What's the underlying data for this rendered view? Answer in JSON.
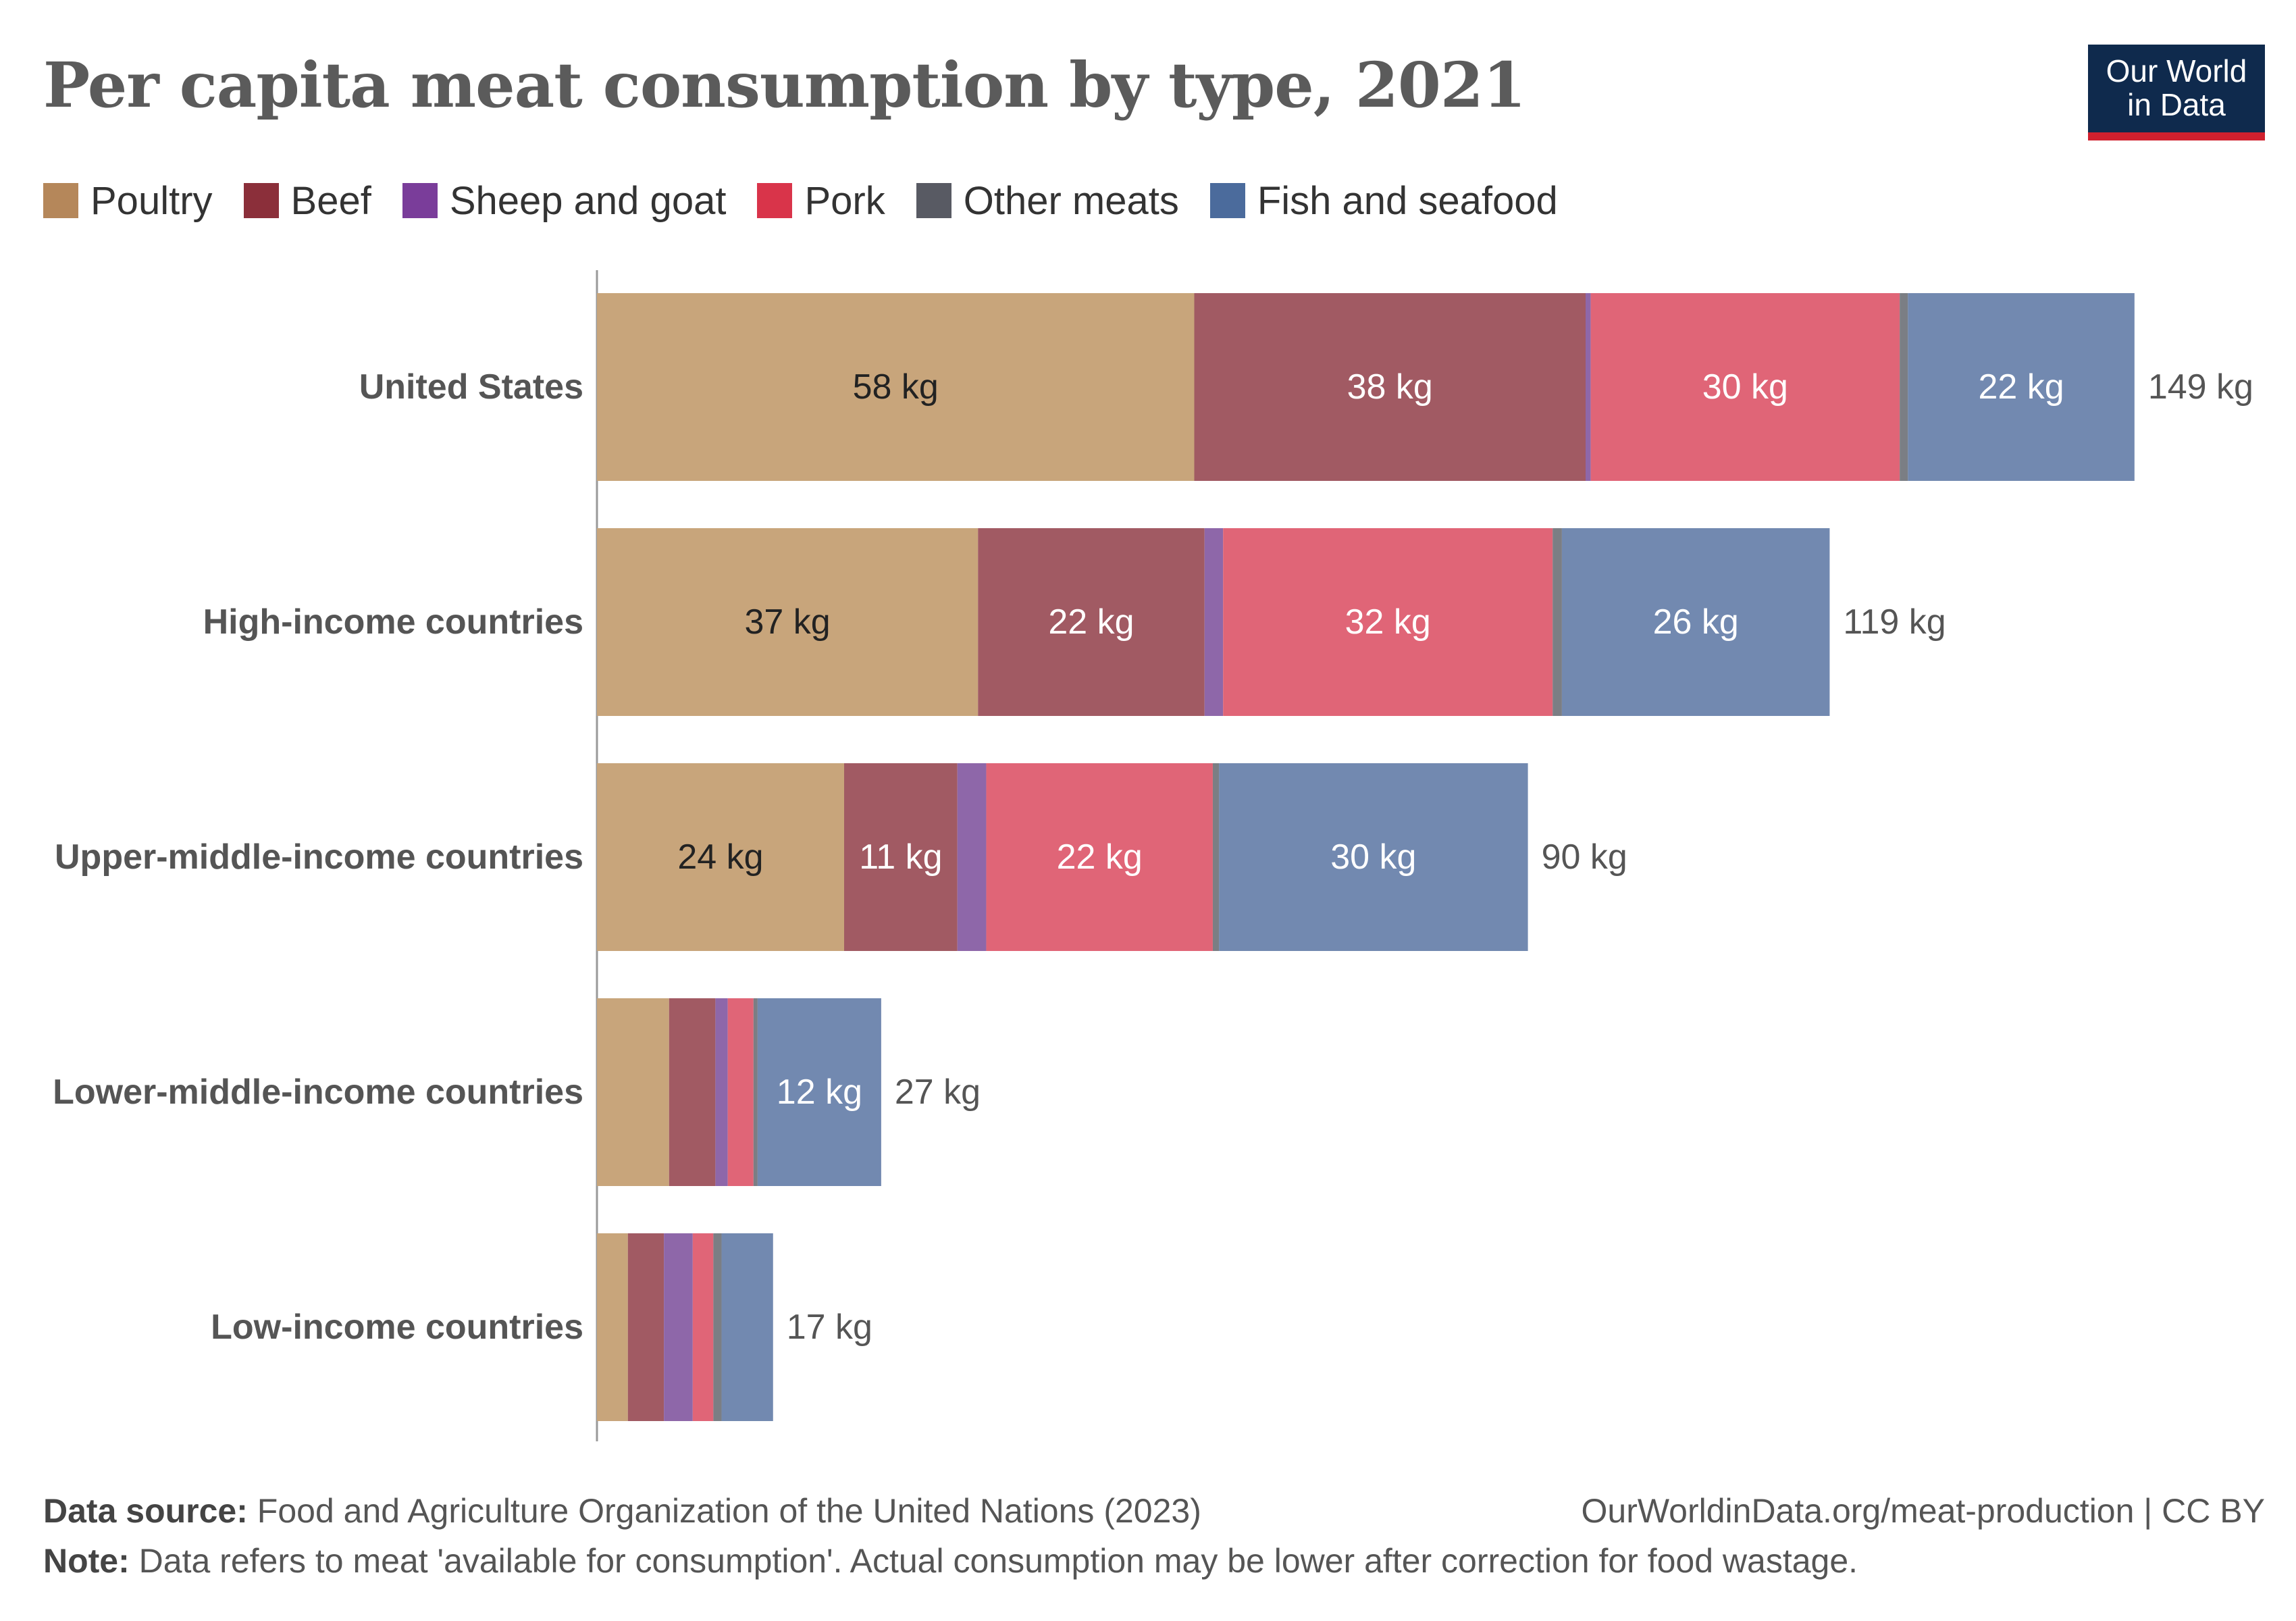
{
  "title": "Per capita meat consumption by type, 2021",
  "logo": {
    "line1": "Our World",
    "line2": "in Data",
    "bg": "#0f2a4d",
    "accent": "#d0202e"
  },
  "legend": [
    {
      "label": "Poultry",
      "color": "#b5875a"
    },
    {
      "label": "Beef",
      "color": "#8b2f3a"
    },
    {
      "label": "Sheep and goat",
      "color": "#7a3d9a"
    },
    {
      "label": "Pork",
      "color": "#d9344a"
    },
    {
      "label": "Other meats",
      "color": "#585a63"
    },
    {
      "label": "Fish and seafood",
      "color": "#4b6b9c"
    }
  ],
  "chart_data": {
    "type": "bar",
    "orientation": "horizontal",
    "stacked": true,
    "unit": "kg",
    "categories": [
      "United States",
      "High-income countries",
      "Upper-middle-income countries",
      "Lower-middle-income countries",
      "Low-income countries"
    ],
    "series": [
      {
        "name": "Poultry",
        "color": "#c8a57b",
        "values": [
          58,
          37,
          24,
          7,
          3
        ]
      },
      {
        "name": "Beef",
        "color": "#a15a63",
        "values": [
          38,
          22,
          11,
          4.5,
          3.5
        ]
      },
      {
        "name": "Sheep and goat",
        "color": "#8e67a9",
        "values": [
          0.5,
          1.8,
          2.8,
          1.2,
          2.8
        ]
      },
      {
        "name": "Pork",
        "color": "#e06577",
        "values": [
          30,
          32,
          22,
          2.5,
          2
        ]
      },
      {
        "name": "Other meats",
        "color": "#7b7e84",
        "values": [
          0.8,
          0.9,
          0.6,
          0.4,
          0.8
        ]
      },
      {
        "name": "Fish and seafood",
        "color": "#7289b0",
        "values": [
          22,
          26,
          30,
          12,
          5
        ]
      }
    ],
    "segment_labels": [
      [
        "58 kg",
        "38 kg",
        "",
        "30 kg",
        "",
        "22 kg"
      ],
      [
        "37 kg",
        "22 kg",
        "",
        "32 kg",
        "",
        "26 kg"
      ],
      [
        "24 kg",
        "11 kg",
        "",
        "22 kg",
        "",
        "30 kg"
      ],
      [
        "",
        "",
        "",
        "",
        "",
        "12 kg"
      ],
      [
        "",
        "",
        "",
        "",
        "",
        ""
      ]
    ],
    "totals": [
      149,
      119,
      90,
      27,
      17
    ],
    "total_labels": [
      "149 kg",
      "119 kg",
      "90 kg",
      "27 kg",
      "17 kg"
    ],
    "xlim": [
      0,
      149
    ],
    "grid": false,
    "legend_position": "top-left"
  },
  "footer": {
    "source_label": "Data source:",
    "source_text": "Food and Agriculture Organization of the United Nations (2023)",
    "url": "OurWorldinData.org/meat-production | CC BY",
    "note_label": "Note:",
    "note_text": "Data refers to meat 'available for consumption'. Actual consumption may be lower after correction for food wastage."
  }
}
